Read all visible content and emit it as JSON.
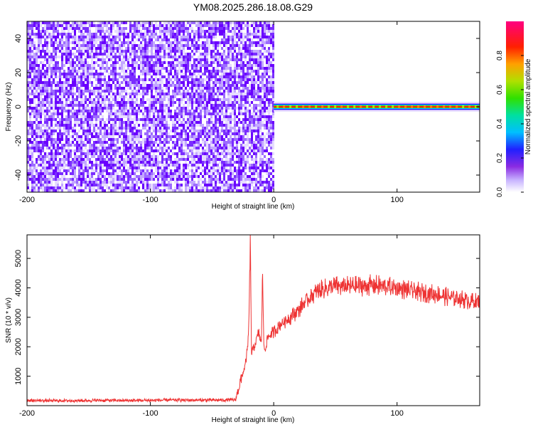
{
  "title": "YM08.2025.286.18.08.G29",
  "chart_data": [
    {
      "type": "heatmap",
      "xlabel": "Height of straight line (km)",
      "ylabel": "Frequency (Hz)",
      "xlim": [
        -200,
        167
      ],
      "ylim": [
        -50,
        50
      ],
      "xticks": [
        -200,
        -100,
        0,
        100
      ],
      "yticks": [
        -40,
        -20,
        0,
        20,
        40
      ],
      "noise_region": {
        "x": [
          -200,
          0
        ],
        "y": [
          -50,
          50
        ],
        "amplitude": [
          0.1,
          0.3
        ]
      },
      "signal_band": {
        "x": [
          0,
          167
        ],
        "frequency_hz": 0,
        "amplitude": 0.95
      },
      "colorbar": {
        "label": "Normalized spectral amplitude",
        "range": [
          0,
          1
        ],
        "ticks": [
          0.0,
          0.2,
          0.4,
          0.6,
          0.8
        ]
      }
    },
    {
      "type": "line",
      "xlabel": "Height of straight line (km)",
      "ylabel": "SNR (10 * v/v)",
      "xlim": [
        -200,
        167
      ],
      "ylim": [
        0,
        5800
      ],
      "xticks": [
        -200,
        -100,
        0,
        100
      ],
      "yticks": [
        1000,
        2000,
        3000,
        4000,
        5000
      ],
      "color": "#ee3333",
      "series": [
        {
          "name": "",
          "x": [
            -200,
            -180,
            -160,
            -140,
            -120,
            -100,
            -80,
            -60,
            -40,
            -31,
            -27,
            -23,
            -21,
            -20,
            -19,
            -18,
            -15,
            -12,
            -10,
            -9,
            -8,
            -7,
            -5,
            -3,
            0,
            5,
            10,
            15,
            20,
            25,
            30,
            35,
            40,
            50,
            60,
            70,
            80,
            90,
            100,
            110,
            120,
            130,
            140,
            150,
            160,
            167
          ],
          "y": [
            180,
            170,
            170,
            180,
            175,
            180,
            190,
            185,
            190,
            195,
            800,
            1400,
            2000,
            3000,
            5700,
            1800,
            2100,
            2500,
            2100,
            4600,
            2000,
            1900,
            2300,
            2400,
            2500,
            2750,
            2900,
            3050,
            3250,
            3500,
            3700,
            3850,
            3950,
            4050,
            4050,
            4050,
            4100,
            4050,
            4000,
            3900,
            3850,
            3800,
            3700,
            3650,
            3550,
            3500
          ]
        }
      ]
    }
  ]
}
